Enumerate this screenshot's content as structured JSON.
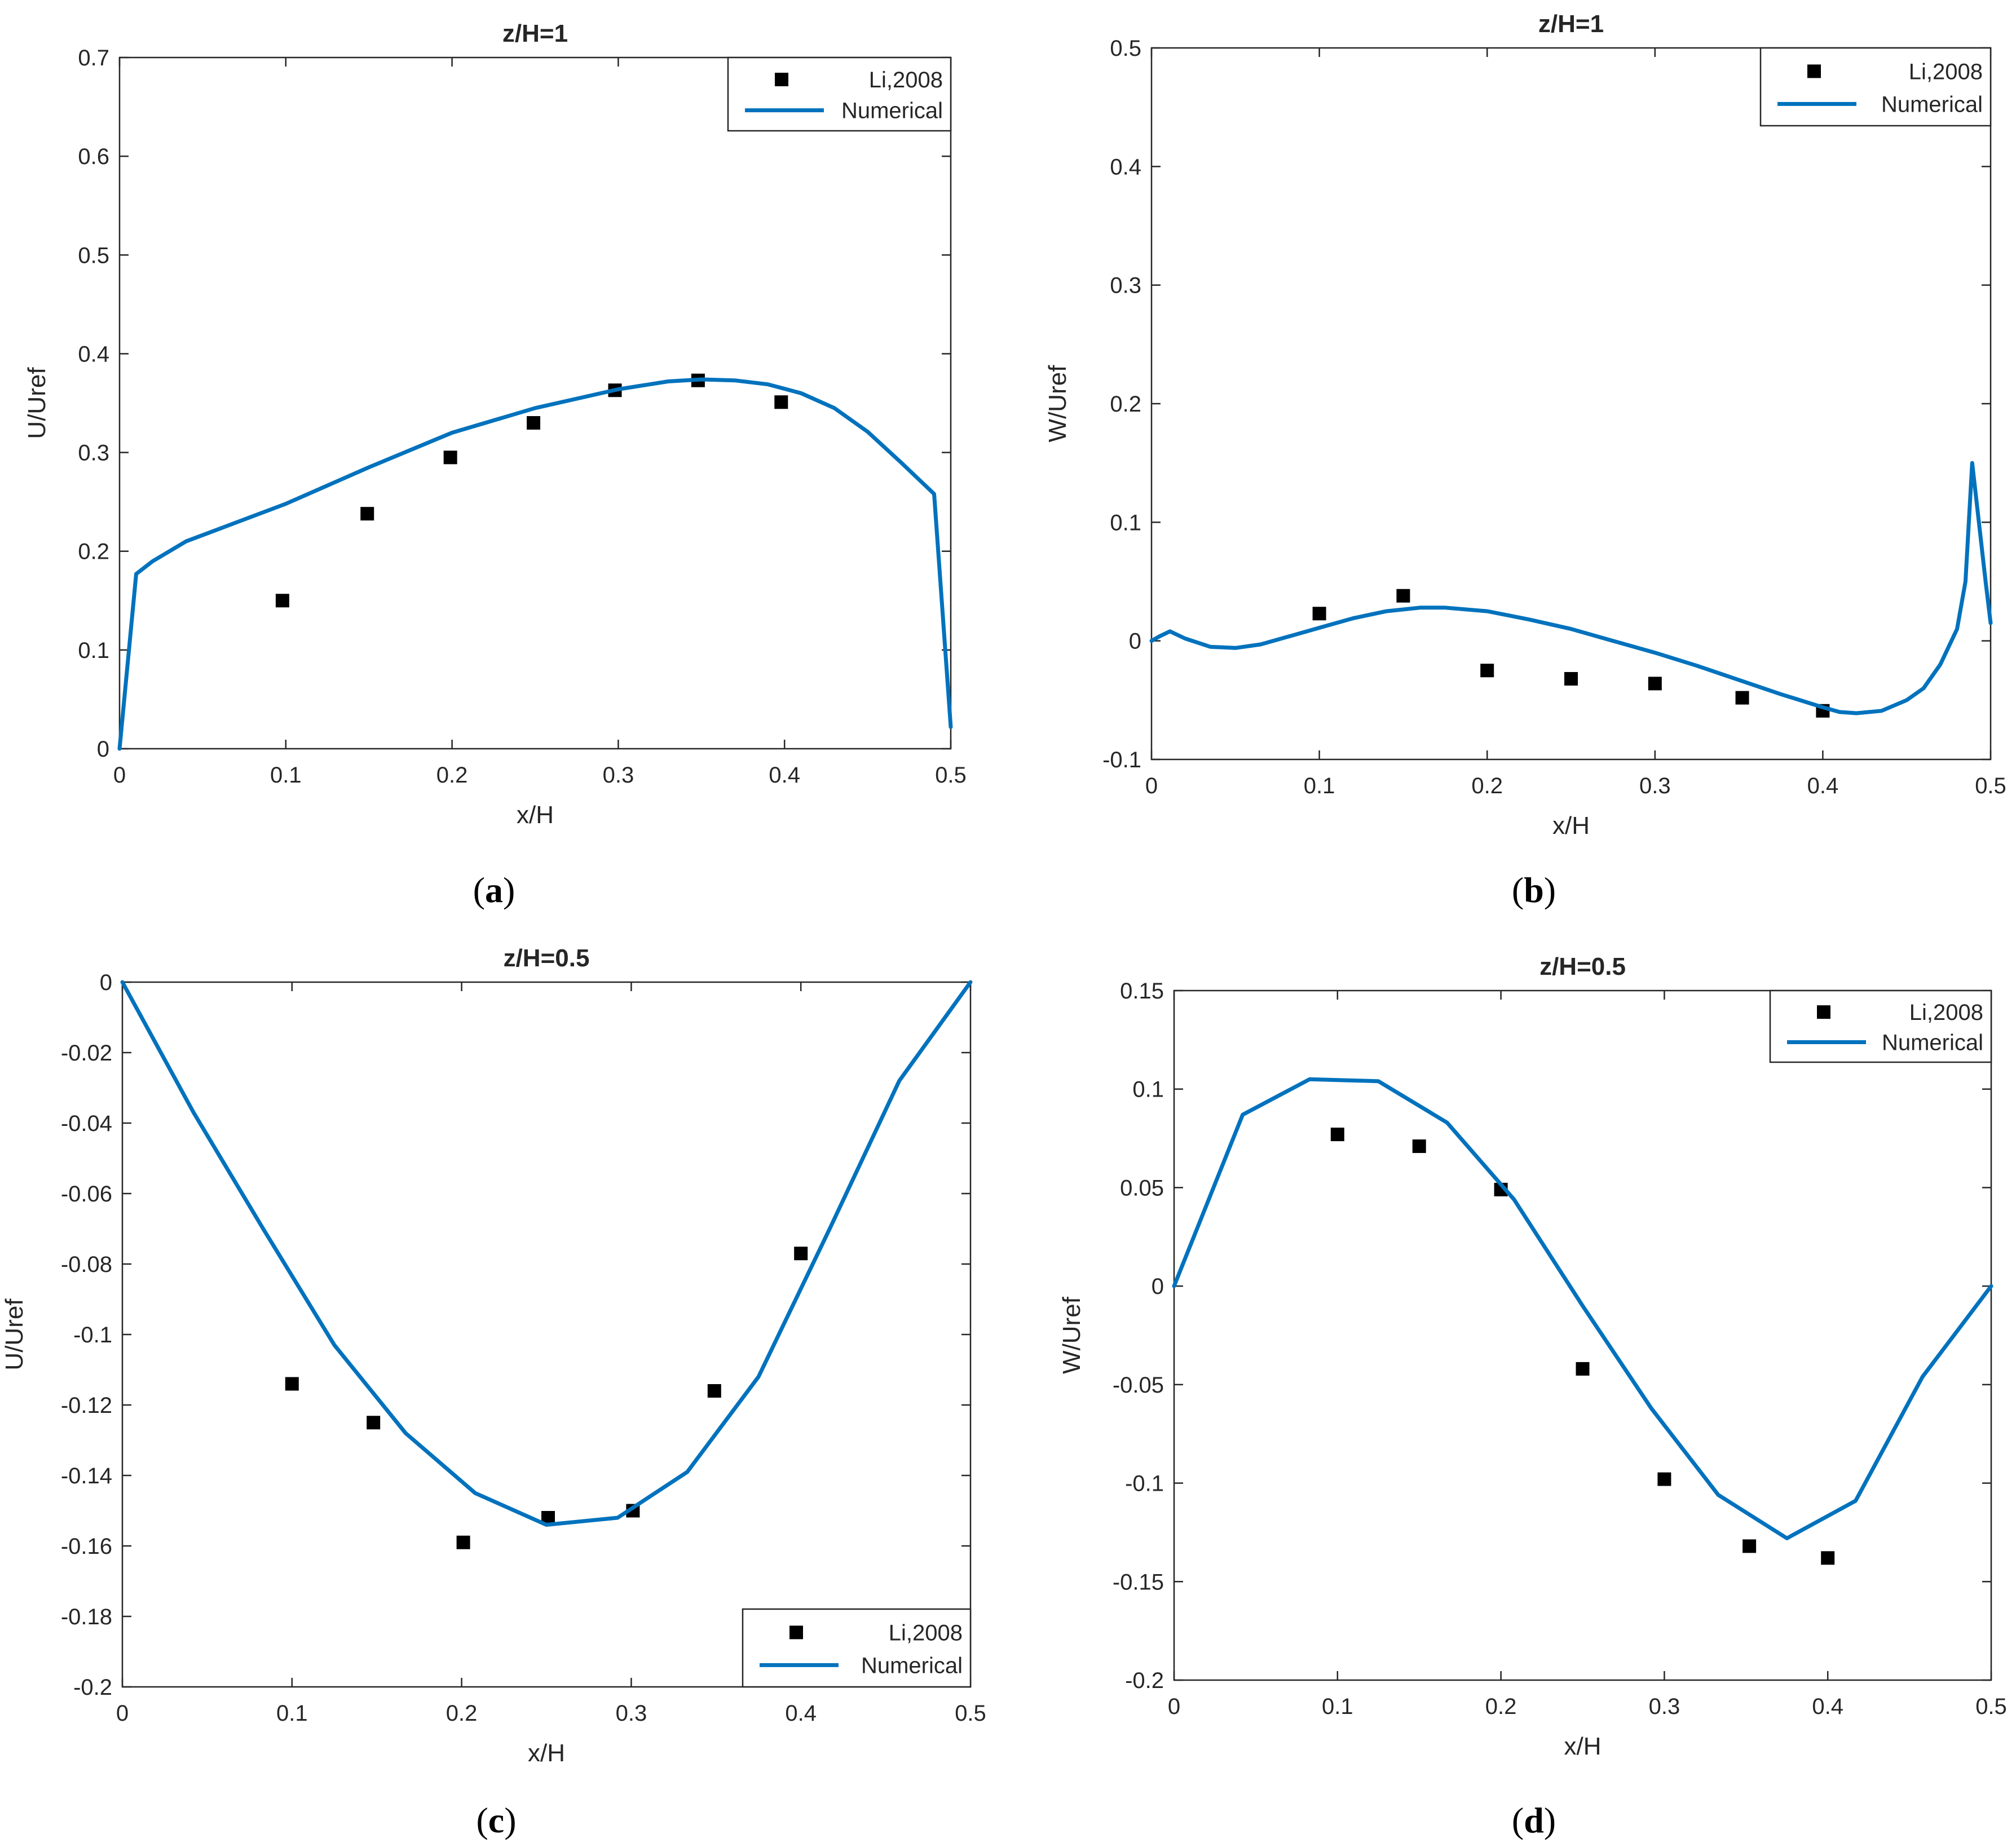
{
  "chart_data": [
    {
      "type": "line",
      "panel_label": "a",
      "title": "z/H=1",
      "xlabel": "x/H",
      "ylabel": "U/Uref",
      "xlim": [
        0,
        0.5
      ],
      "ylim": [
        0,
        0.7
      ],
      "xticks": [
        0,
        0.1,
        0.2,
        0.3,
        0.4,
        0.5
      ],
      "yticks": [
        0,
        0.1,
        0.2,
        0.3,
        0.4,
        0.5,
        0.6,
        0.7
      ],
      "legend_position": "top-right",
      "series": [
        {
          "name": "Li,2008",
          "kind": "scatter",
          "x": [
            0.098,
            0.149,
            0.199,
            0.249,
            0.298,
            0.348,
            0.398
          ],
          "y": [
            0.15,
            0.238,
            0.295,
            0.33,
            0.363,
            0.373,
            0.351
          ]
        },
        {
          "name": "Numerical",
          "kind": "line",
          "color": "#0072BD",
          "x": [
            0,
            0.01,
            0.02,
            0.04,
            0.07,
            0.1,
            0.15,
            0.2,
            0.25,
            0.3,
            0.33,
            0.35,
            0.37,
            0.39,
            0.41,
            0.43,
            0.45,
            0.47,
            0.49,
            0.5
          ],
          "y": [
            0,
            0.177,
            0.19,
            0.21,
            0.229,
            0.248,
            0.285,
            0.32,
            0.345,
            0.364,
            0.372,
            0.374,
            0.373,
            0.369,
            0.36,
            0.345,
            0.321,
            0.29,
            0.258,
            0.022
          ]
        }
      ]
    },
    {
      "type": "line",
      "panel_label": "b",
      "title": "z/H=1",
      "xlabel": "x/H",
      "ylabel": "W/Uref",
      "xlim": [
        0,
        0.5
      ],
      "ylim": [
        -0.1,
        0.5
      ],
      "xticks": [
        0,
        0.1,
        0.2,
        0.3,
        0.4,
        0.5
      ],
      "yticks": [
        -0.1,
        0,
        0.1,
        0.2,
        0.3,
        0.4,
        0.5
      ],
      "legend_position": "top-right",
      "series": [
        {
          "name": "Li,2008",
          "kind": "scatter",
          "x": [
            0.1,
            0.15,
            0.2,
            0.25,
            0.3,
            0.352,
            0.4
          ],
          "y": [
            0.023,
            0.038,
            -0.025,
            -0.032,
            -0.036,
            -0.048,
            -0.059
          ]
        },
        {
          "name": "Numerical",
          "kind": "line",
          "color": "#0072BD",
          "x": [
            0,
            0.005,
            0.011,
            0.02,
            0.035,
            0.05,
            0.065,
            0.08,
            0.1,
            0.12,
            0.14,
            0.16,
            0.175,
            0.2,
            0.225,
            0.25,
            0.275,
            0.3,
            0.325,
            0.35,
            0.375,
            0.4,
            0.41,
            0.42,
            0.435,
            0.45,
            0.46,
            0.47,
            0.48,
            0.485,
            0.489,
            0.493,
            0.497,
            0.5
          ],
          "y": [
            0,
            0.004,
            0.008,
            0.002,
            -0.005,
            -0.006,
            -0.003,
            0.003,
            0.011,
            0.019,
            0.025,
            0.028,
            0.028,
            0.025,
            0.018,
            0.01,
            0.0,
            -0.01,
            -0.021,
            -0.033,
            -0.045,
            -0.056,
            -0.06,
            -0.061,
            -0.059,
            -0.05,
            -0.04,
            -0.02,
            0.01,
            0.05,
            0.15,
            0.1,
            0.05,
            0.015
          ]
        }
      ]
    },
    {
      "type": "line",
      "panel_label": "c",
      "title": "z/H=0.5",
      "xlabel": "x/H",
      "ylabel": "U/Uref",
      "xlim": [
        0,
        0.5
      ],
      "ylim": [
        -0.2,
        0
      ],
      "xticks": [
        0,
        0.1,
        0.2,
        0.3,
        0.4,
        0.5
      ],
      "yticks": [
        -0.2,
        -0.18,
        -0.16,
        -0.14,
        -0.12,
        -0.1,
        -0.08,
        -0.06,
        -0.04,
        -0.02,
        0
      ],
      "legend_position": "bottom-right",
      "series": [
        {
          "name": "Li,2008",
          "kind": "scatter",
          "x": [
            0.1,
            0.148,
            0.201,
            0.251,
            0.301,
            0.349,
            0.4
          ],
          "y": [
            -0.114,
            -0.125,
            -0.159,
            -0.152,
            -0.15,
            -0.116,
            -0.077
          ]
        },
        {
          "name": "Numerical",
          "kind": "line",
          "color": "#0072BD",
          "x": [
            0,
            0.042,
            0.083,
            0.125,
            0.167,
            0.208,
            0.25,
            0.292,
            0.333,
            0.375,
            0.417,
            0.458,
            0.5
          ],
          "y": [
            0,
            -0.037,
            -0.07,
            -0.103,
            -0.128,
            -0.145,
            -0.154,
            -0.152,
            -0.139,
            -0.112,
            -0.07,
            -0.028,
            0
          ]
        }
      ]
    },
    {
      "type": "line",
      "panel_label": "d",
      "title": "z/H=0.5",
      "xlabel": "x/H",
      "ylabel": "W/Uref",
      "xlim": [
        0,
        0.5
      ],
      "ylim": [
        -0.2,
        0.15
      ],
      "xticks": [
        0,
        0.1,
        0.2,
        0.3,
        0.4,
        0.5
      ],
      "yticks": [
        -0.2,
        -0.15,
        -0.1,
        -0.05,
        0,
        0.05,
        0.1,
        0.15
      ],
      "legend_position": "top-right",
      "series": [
        {
          "name": "Li,2008",
          "kind": "scatter",
          "x": [
            0.1,
            0.15,
            0.2,
            0.25,
            0.3,
            0.352,
            0.4
          ],
          "y": [
            0.077,
            0.071,
            0.049,
            -0.042,
            -0.098,
            -0.132,
            -0.138
          ]
        },
        {
          "name": "Numerical",
          "kind": "line",
          "color": "#0072BD",
          "x": [
            0,
            0.042,
            0.083,
            0.125,
            0.167,
            0.208,
            0.25,
            0.292,
            0.333,
            0.375,
            0.417,
            0.458,
            0.5
          ],
          "y": [
            0,
            0.087,
            0.105,
            0.104,
            0.083,
            0.044,
            -0.01,
            -0.062,
            -0.106,
            -0.128,
            -0.109,
            -0.046,
            0
          ]
        }
      ]
    }
  ]
}
